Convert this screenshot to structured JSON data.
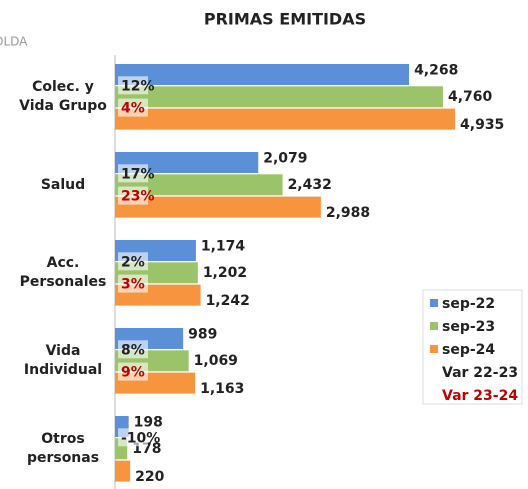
{
  "chart_data": {
    "type": "barh",
    "title": "PRIMAS EMITIDAS",
    "corner_text": "OLDA",
    "categories": [
      "Colec. y\nVida Grupo",
      "Salud",
      "Acc.\nPersonales",
      "Vida\nIndividual",
      "Otros\npersonas"
    ],
    "xlim": [
      0,
      5600
    ],
    "legend_position": "right",
    "series": [
      {
        "name": "sep-22",
        "color": "#5b8fd8",
        "values": [
          4268,
          2079,
          1174,
          989,
          198
        ],
        "value_labels": [
          "4,268",
          "2,079",
          "1,174",
          "989",
          "198"
        ]
      },
      {
        "name": "sep-23",
        "color": "#9bc46a",
        "values": [
          4760,
          2432,
          1202,
          1069,
          178
        ],
        "value_labels": [
          "4,760",
          "2,432",
          "1,202",
          "1,069",
          "178"
        ]
      },
      {
        "name": "sep-24",
        "color": "#f7953f",
        "values": [
          4935,
          2988,
          1242,
          1163,
          220
        ],
        "value_labels": [
          "4,935",
          "2,988",
          "1,242",
          "1,163",
          "220"
        ]
      }
    ],
    "var_series": [
      {
        "name": "Var 22-23",
        "color": "#222222",
        "values": [
          12,
          17,
          2,
          8,
          -10
        ],
        "value_labels": [
          "12%",
          "17%",
          "2%",
          "8%",
          "-10%"
        ]
      },
      {
        "name": "Var 23-24",
        "color": "#c00000",
        "values": [
          4,
          23,
          3,
          9,
          null
        ],
        "value_labels": [
          "4%",
          "23%",
          "3%",
          "9%",
          null
        ]
      }
    ]
  }
}
